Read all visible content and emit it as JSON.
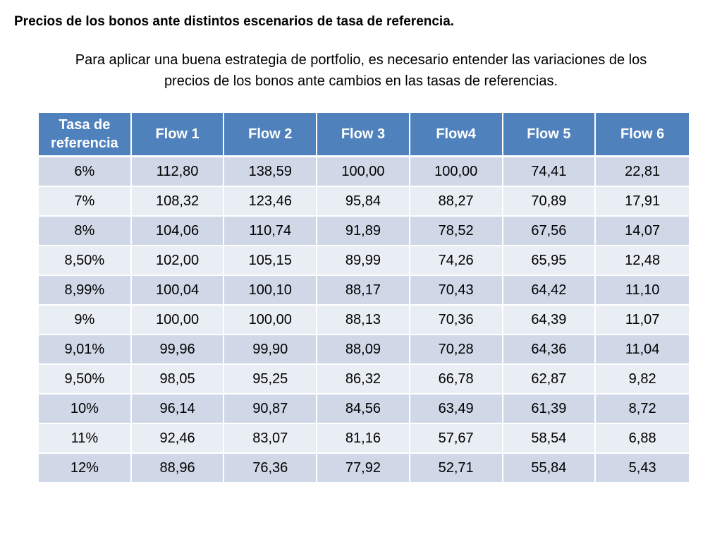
{
  "title": "Precios de los bonos ante distintos escenarios de tasa de referencia.",
  "intro_line1": "Para aplicar una buena estrategia de portfolio, es necesario entender las variaciones de los",
  "intro_line2": "precios de los bonos ante cambios en las tasas de referencias.",
  "colors": {
    "header_bg": "#4f81bd",
    "row_odd_bg": "#d0d8e8",
    "row_even_bg": "#e9edf4"
  },
  "table": {
    "header_first_line1": "Tasa de",
    "header_first_line2": "referencia",
    "headers": [
      "Flow 1",
      "Flow 2",
      "Flow 3",
      "Flow4",
      "Flow 5",
      "Flow 6"
    ],
    "rows": [
      [
        "6%",
        "112,80",
        "138,59",
        "100,00",
        "100,00",
        "74,41",
        "22,81"
      ],
      [
        "7%",
        "108,32",
        "123,46",
        "95,84",
        "88,27",
        "70,89",
        "17,91"
      ],
      [
        "8%",
        "104,06",
        "110,74",
        "91,89",
        "78,52",
        "67,56",
        "14,07"
      ],
      [
        "8,50%",
        "102,00",
        "105,15",
        "89,99",
        "74,26",
        "65,95",
        "12,48"
      ],
      [
        "8,99%",
        "100,04",
        "100,10",
        "88,17",
        "70,43",
        "64,42",
        "11,10"
      ],
      [
        "9%",
        "100,00",
        "100,00",
        "88,13",
        "70,36",
        "64,39",
        "11,07"
      ],
      [
        "9,01%",
        "99,96",
        "99,90",
        "88,09",
        "70,28",
        "64,36",
        "11,04"
      ],
      [
        "9,50%",
        "98,05",
        "95,25",
        "86,32",
        "66,78",
        "62,87",
        "9,82"
      ],
      [
        "10%",
        "96,14",
        "90,87",
        "84,56",
        "63,49",
        "61,39",
        "8,72"
      ],
      [
        "11%",
        "92,46",
        "83,07",
        "81,16",
        "57,67",
        "58,54",
        "6,88"
      ],
      [
        "12%",
        "88,96",
        "76,36",
        "77,92",
        "52,71",
        "55,84",
        "5,43"
      ]
    ]
  }
}
